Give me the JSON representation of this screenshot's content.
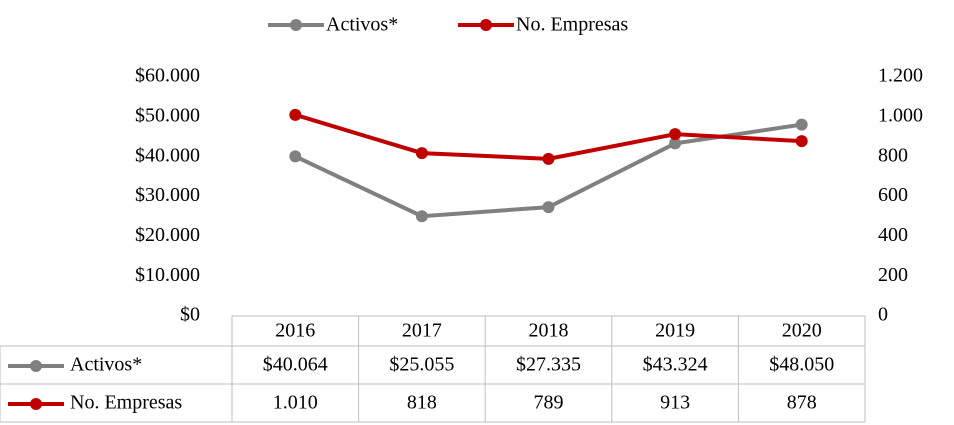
{
  "chart_data": {
    "type": "line",
    "categories": [
      "2016",
      "2017",
      "2018",
      "2019",
      "2020"
    ],
    "series": [
      {
        "name": "Activos*",
        "color": "#808080",
        "values": [
          40064,
          25055,
          27335,
          43324,
          48050
        ],
        "value_labels": [
          "$40.064",
          "$25.055",
          "$27.335",
          "$43.324",
          "$48.050"
        ]
      },
      {
        "name": "No. Empresas",
        "color": "#c00000",
        "axis": "y2",
        "values": [
          1010,
          818,
          789,
          913,
          878
        ],
        "value_labels": [
          "1.010",
          "818",
          "789",
          "913",
          "878"
        ]
      }
    ],
    "ylim": [
      0,
      60000
    ],
    "yticks": [
      {
        "value": 0,
        "label": "$0"
      },
      {
        "value": 10000,
        "label": "$10.000"
      },
      {
        "value": 20000,
        "label": "$20.000"
      },
      {
        "value": 30000,
        "label": "$30.000"
      },
      {
        "value": 40000,
        "label": "$40.000"
      },
      {
        "value": 50000,
        "label": "$50.000"
      },
      {
        "value": 60000,
        "label": "$60.000"
      }
    ],
    "y2lim": [
      0,
      1200
    ],
    "y2ticks": [
      0,
      200,
      400,
      600,
      800,
      {
        "value": 1000,
        "label": "1.000"
      },
      {
        "value": 1200,
        "label": "1.200"
      }
    ],
    "legend": "top",
    "grid": false,
    "data_table": true
  }
}
